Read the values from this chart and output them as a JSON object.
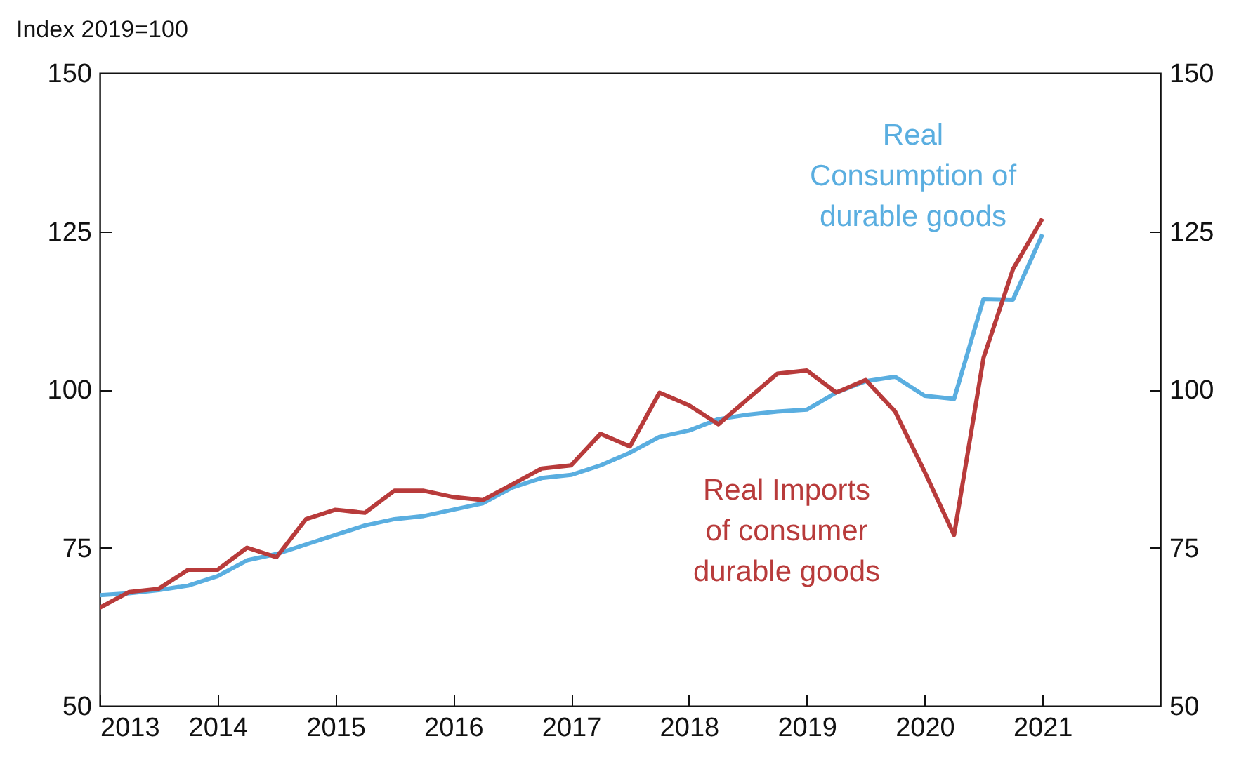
{
  "chart_data": {
    "type": "line",
    "ylabel": "Index 2019=100",
    "x": [
      2013,
      2013.25,
      2013.5,
      2013.75,
      2014,
      2014.25,
      2014.5,
      2014.75,
      2015,
      2015.25,
      2015.5,
      2015.75,
      2016,
      2016.25,
      2016.5,
      2016.75,
      2017,
      2017.25,
      2017.5,
      2017.75,
      2018,
      2018.25,
      2018.5,
      2018.75,
      2019,
      2019.25,
      2019.5,
      2019.75,
      2020,
      2020.25,
      2020.5,
      2020.75,
      2021
    ],
    "series": [
      {
        "name": "Real\nConsumption of\ndurable goods",
        "color": "#5aaee0",
        "values": [
          67.5,
          67.8,
          68.3,
          69,
          70.5,
          73,
          74,
          75.5,
          77,
          78.5,
          79.5,
          80,
          81,
          82,
          84.5,
          86,
          86.5,
          88,
          90,
          92.5,
          93.5,
          95.3,
          96,
          96.5,
          96.8,
          99.5,
          101.3,
          102,
          99,
          98.5,
          114.3,
          114.2,
          124.5
        ]
      },
      {
        "name": "Real Imports\nof consumer\ndurable goods",
        "color": "#b83b3b",
        "values": [
          65.5,
          68,
          68.5,
          71.5,
          71.5,
          75,
          73.5,
          79.5,
          81,
          80.5,
          84,
          84,
          83,
          82.5,
          85,
          87.5,
          88,
          93,
          91,
          99.5,
          97.5,
          94.5,
          98.5,
          102.5,
          103,
          99.5,
          101.5,
          96.5,
          87,
          77,
          105,
          119,
          127
        ]
      }
    ],
    "xlim": [
      2013,
      2022
    ],
    "xticks": [
      2013,
      2014,
      2015,
      2016,
      2017,
      2018,
      2019,
      2020,
      2021
    ],
    "ylim": [
      50,
      150
    ],
    "yticks": [
      50,
      75,
      100,
      125,
      150
    ],
    "y2lim": [
      50,
      150
    ],
    "y2ticks": [
      50,
      75,
      100,
      125,
      150
    ],
    "grid": false,
    "line_style": "solid",
    "marker": "none"
  }
}
